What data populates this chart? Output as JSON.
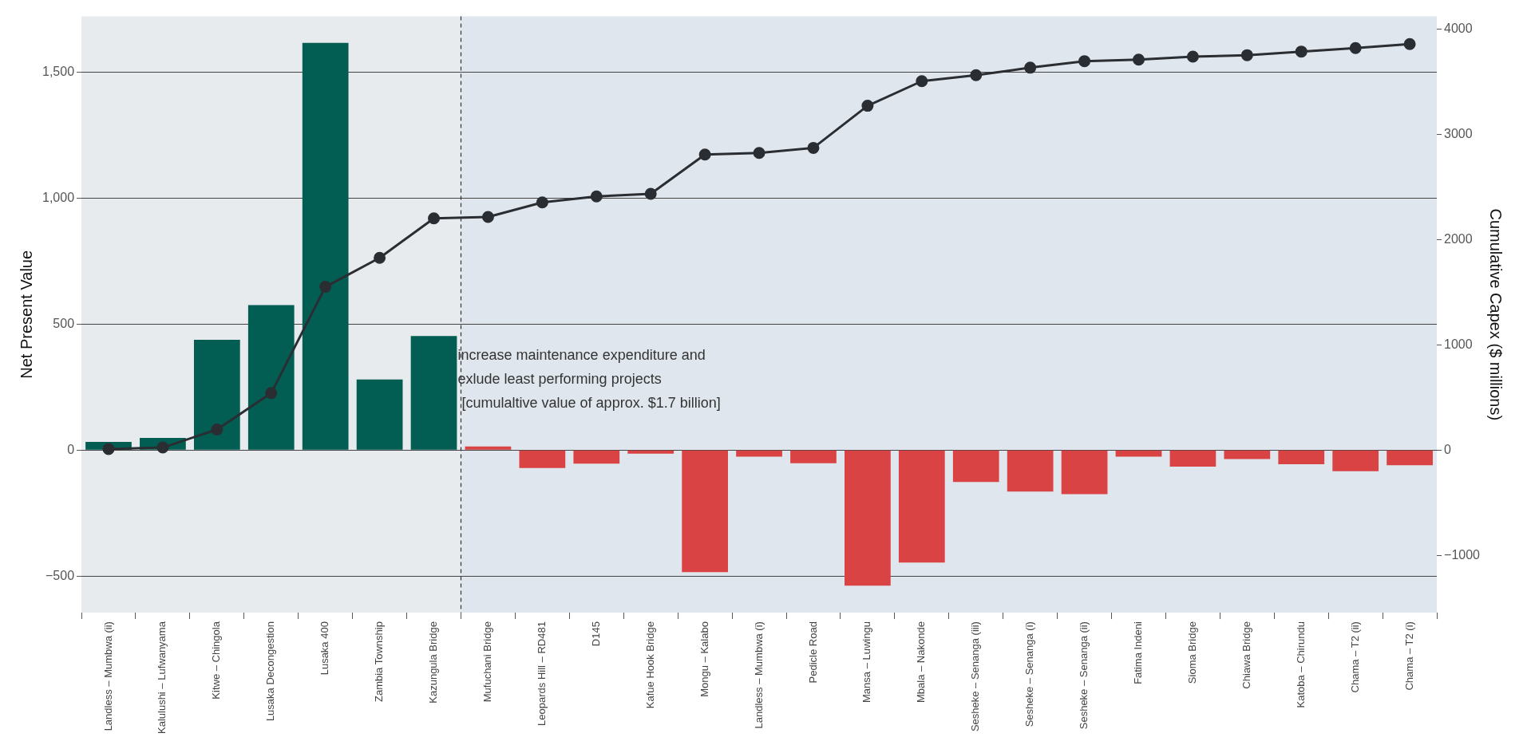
{
  "chart_data": {
    "type": "bar",
    "ylabel": "Net Present Value",
    "y2label": "Cumulative Capex ($ millions)",
    "categories": [
      "Landless – Mumbwa (ii)",
      "Kalulushi – Lufwanyama",
      "Kitwe – Chingola",
      "Lusaka Decongestion",
      "Lusaka 400",
      "Zambia Township",
      "Kazungula Bridge",
      "Mufuchani Bridge",
      "Leopards Hill – RD481",
      "D145",
      "Kafue Hook Bridge",
      "Mongu – Kalabo",
      "Landless – Mumbwa (i)",
      "Pedicle Road",
      "Mansa – Luwingu",
      "Mbala – Nakonde",
      "Sesheke – Senanga (iii)",
      "Sesheke – Senanga (i)",
      "Sesheke – Senanga (ii)",
      "Fatima Indeni",
      "Sioma Bridge",
      "Chiawa Bridge",
      "Katoba – Chirundu",
      "Chama – T2 (ii)",
      "Chama – T2 (i)"
    ],
    "series": [
      {
        "colors": [
          "#025e52",
          "#025e52",
          "#025e52",
          "#025e52",
          "#025e52",
          "#025e52",
          "#025e52",
          "#d94343",
          "#d94343",
          "#d94343",
          "#d94343",
          "#d94343",
          "#d94343",
          "#d94343",
          "#d94343",
          "#d94343",
          "#d94343",
          "#d94343",
          "#d94343",
          "#d94343",
          "#d94343",
          "#d94343",
          "#d94343",
          "#d94343",
          "#d94343"
        ],
        "values": [
          32,
          48,
          437,
          575,
          1615,
          280,
          452,
          14,
          -71,
          -54,
          -14,
          -484,
          -26,
          -52,
          -538,
          -446,
          -127,
          -165,
          -175,
          -26,
          -66,
          -36,
          -56,
          -84,
          -60
        ]
      },
      {
        "type": "line",
        "axis": "y2",
        "color": "#2a2e33",
        "values": [
          10,
          24,
          195,
          541,
          1551,
          1826,
          2201,
          2215,
          2353,
          2410,
          2434,
          2808,
          2823,
          2871,
          3271,
          3505,
          3562,
          3633,
          3695,
          3710,
          3738,
          3752,
          3786,
          3819,
          3857
        ]
      }
    ],
    "ylim": [
      -645,
      1720
    ],
    "yticks": [
      -500,
      0,
      500,
      {
        "value": 1000,
        "label": "1,000"
      },
      {
        "value": 1500,
        "label": "1,500"
      }
    ],
    "y2lim": [
      -1545,
      4120
    ],
    "y2ticks": [
      -1000,
      0,
      1000,
      2000,
      3000,
      4000
    ],
    "grid": "y",
    "marker": "circle",
    "line_style": "solid",
    "bands": [
      {
        "axis": "x",
        "from": "Landless – Mumbwa (ii)",
        "to": "Kazungula Bridge",
        "color": "#e8ebee"
      },
      {
        "axis": "x",
        "from": "Mufuchani Bridge",
        "to": "Chama – T2 (i)",
        "color": "#dfe6ed"
      }
    ],
    "ref_lines": [
      {
        "axis": "x",
        "value": "Kazungula Bridge",
        "line_style": "dashed",
        "color": "#333333"
      }
    ],
    "annotations": [
      "increase maintenance expenditure and\nexlude least performing projects\n [cumulaltive value of approx. $1.7 billion]"
    ]
  }
}
